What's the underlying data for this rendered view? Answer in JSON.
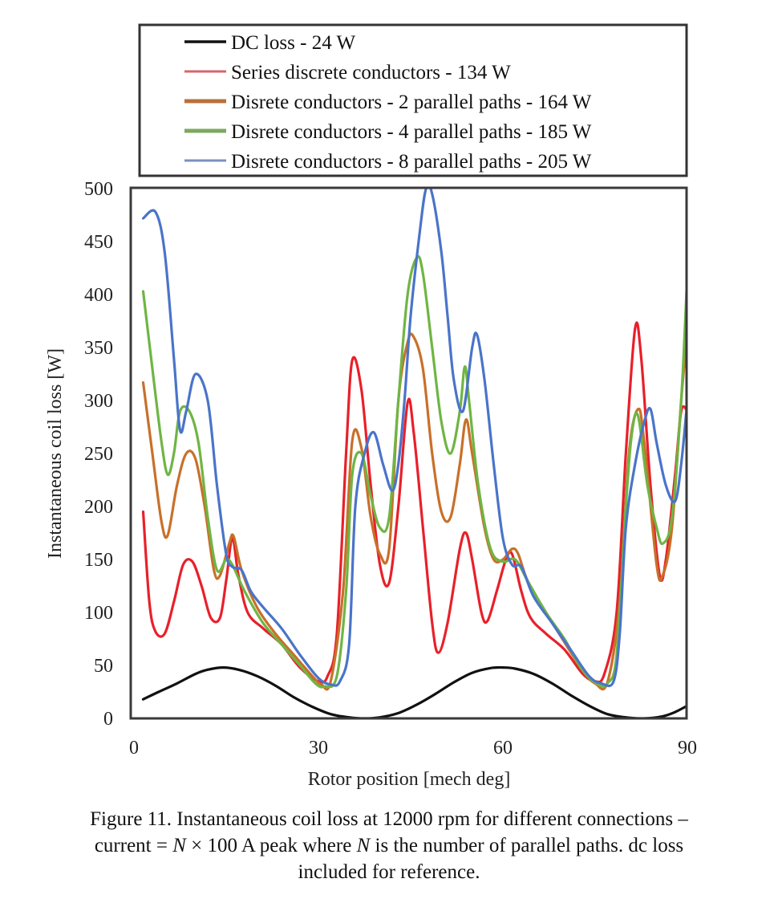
{
  "chart_data": {
    "type": "line",
    "title": "",
    "xlabel": "Rotor position [mech deg]",
    "ylabel": "Instantaneous coil loss [W]",
    "xlim": [
      0,
      90
    ],
    "ylim": [
      0,
      500
    ],
    "x_ticks": [
      0,
      30,
      60,
      90
    ],
    "y_ticks": [
      0,
      50,
      100,
      150,
      200,
      250,
      300,
      350,
      400,
      450,
      500
    ],
    "grid": false,
    "legend_position": "top (above plot)",
    "series": [
      {
        "name": "DC loss - 24 W",
        "color": "#111111",
        "points": [
          [
            1.5,
            18
          ],
          [
            4,
            25
          ],
          [
            7,
            33
          ],
          [
            10,
            42
          ],
          [
            12,
            46
          ],
          [
            14.5,
            48
          ],
          [
            17,
            46
          ],
          [
            20,
            40
          ],
          [
            23,
            31
          ],
          [
            26,
            20
          ],
          [
            29,
            11
          ],
          [
            32,
            4
          ],
          [
            35,
            1
          ],
          [
            37.5,
            0
          ],
          [
            40,
            1
          ],
          [
            43,
            5
          ],
          [
            46,
            13
          ],
          [
            49,
            23
          ],
          [
            52,
            34
          ],
          [
            55,
            43
          ],
          [
            58,
            47.5
          ],
          [
            60,
            48
          ],
          [
            62,
            47
          ],
          [
            65,
            42
          ],
          [
            68,
            33
          ],
          [
            71,
            22
          ],
          [
            74,
            12
          ],
          [
            77,
            4
          ],
          [
            80,
            1
          ],
          [
            83,
            0
          ],
          [
            86,
            2
          ],
          [
            88,
            6
          ],
          [
            90,
            12
          ]
        ]
      },
      {
        "name": "Series discrete conductors - 134 W",
        "color": "#e8202a",
        "points": [
          [
            1.5,
            195
          ],
          [
            2.5,
            110
          ],
          [
            3.5,
            82
          ],
          [
            5,
            80
          ],
          [
            6.5,
            110
          ],
          [
            8,
            145
          ],
          [
            9.5,
            148
          ],
          [
            11,
            125
          ],
          [
            12.5,
            95
          ],
          [
            14,
            95
          ],
          [
            15,
            130
          ],
          [
            16,
            170
          ],
          [
            17,
            135
          ],
          [
            18.5,
            100
          ],
          [
            21,
            85
          ],
          [
            24,
            70
          ],
          [
            27,
            48
          ],
          [
            30,
            35
          ],
          [
            31.5,
            40
          ],
          [
            33,
            80
          ],
          [
            34.5,
            250
          ],
          [
            35.5,
            338
          ],
          [
            37,
            310
          ],
          [
            38.5,
            220
          ],
          [
            40,
            145
          ],
          [
            41.5,
            128
          ],
          [
            43,
            200
          ],
          [
            44.5,
            298
          ],
          [
            45.5,
            270
          ],
          [
            47,
            180
          ],
          [
            48.5,
            90
          ],
          [
            49.5,
            62
          ],
          [
            51,
            90
          ],
          [
            53,
            160
          ],
          [
            54,
            175
          ],
          [
            55,
            150
          ],
          [
            56.5,
            100
          ],
          [
            57.5,
            92
          ],
          [
            59,
            120
          ],
          [
            60.5,
            150
          ],
          [
            61.5,
            155
          ],
          [
            63,
            120
          ],
          [
            64.5,
            95
          ],
          [
            67,
            80
          ],
          [
            70,
            65
          ],
          [
            73,
            42
          ],
          [
            75,
            35
          ],
          [
            76.5,
            42
          ],
          [
            78.5,
            100
          ],
          [
            80,
            250
          ],
          [
            81.5,
            368
          ],
          [
            82.5,
            340
          ],
          [
            84,
            220
          ],
          [
            85.5,
            135
          ],
          [
            86.5,
            150
          ],
          [
            88,
            230
          ],
          [
            89,
            290
          ],
          [
            90,
            290
          ]
        ]
      },
      {
        "name": "Disrete conductors - 2 parallel paths - 164 W",
        "color": "#c8702a",
        "points": [
          [
            1.5,
            317
          ],
          [
            3,
            250
          ],
          [
            4.5,
            185
          ],
          [
            5.5,
            173
          ],
          [
            7,
            220
          ],
          [
            8.5,
            250
          ],
          [
            10,
            245
          ],
          [
            11.5,
            200
          ],
          [
            13,
            140
          ],
          [
            14,
            135
          ],
          [
            15.5,
            165
          ],
          [
            16.2,
            172
          ],
          [
            17.5,
            140
          ],
          [
            20,
            105
          ],
          [
            23,
            80
          ],
          [
            26,
            60
          ],
          [
            29,
            40
          ],
          [
            30.5,
            32
          ],
          [
            32,
            35
          ],
          [
            34,
            120
          ],
          [
            35.5,
            262
          ],
          [
            37,
            255
          ],
          [
            38.5,
            190
          ],
          [
            40,
            155
          ],
          [
            41.5,
            160
          ],
          [
            43,
            300
          ],
          [
            44.5,
            355
          ],
          [
            45.5,
            360
          ],
          [
            47,
            330
          ],
          [
            48.5,
            250
          ],
          [
            50,
            195
          ],
          [
            51.5,
            190
          ],
          [
            53,
            240
          ],
          [
            54,
            282
          ],
          [
            55,
            250
          ],
          [
            57,
            180
          ],
          [
            58.5,
            150
          ],
          [
            60,
            150
          ],
          [
            61.5,
            160
          ],
          [
            62.5,
            155
          ],
          [
            64,
            130
          ],
          [
            67,
            100
          ],
          [
            70,
            72
          ],
          [
            73,
            45
          ],
          [
            75,
            33
          ],
          [
            77,
            34
          ],
          [
            79,
            110
          ],
          [
            80.5,
            250
          ],
          [
            82,
            292
          ],
          [
            83,
            260
          ],
          [
            85,
            145
          ],
          [
            86,
            135
          ],
          [
            87.5,
            180
          ],
          [
            89,
            300
          ],
          [
            90,
            365
          ]
        ]
      },
      {
        "name": "Disrete conductors - 4 parallel paths - 185 W",
        "color": "#6fb544",
        "points": [
          [
            1.5,
            403
          ],
          [
            3,
            330
          ],
          [
            4.5,
            260
          ],
          [
            5.5,
            230
          ],
          [
            6.5,
            250
          ],
          [
            7.5,
            290
          ],
          [
            9,
            290
          ],
          [
            10.5,
            260
          ],
          [
            12,
            190
          ],
          [
            13.5,
            140
          ],
          [
            15,
            150
          ],
          [
            16,
            145
          ],
          [
            18,
            120
          ],
          [
            21,
            90
          ],
          [
            24,
            70
          ],
          [
            27,
            50
          ],
          [
            29.5,
            33
          ],
          [
            31,
            30
          ],
          [
            33,
            40
          ],
          [
            34.5,
            120
          ],
          [
            35.5,
            230
          ],
          [
            37,
            250
          ],
          [
            38.5,
            210
          ],
          [
            40,
            180
          ],
          [
            41.5,
            190
          ],
          [
            43,
            300
          ],
          [
            44.5,
            400
          ],
          [
            46,
            435
          ],
          [
            47,
            420
          ],
          [
            48.5,
            350
          ],
          [
            50,
            280
          ],
          [
            51.5,
            250
          ],
          [
            53,
            290
          ],
          [
            53.8,
            332
          ],
          [
            54.5,
            300
          ],
          [
            56,
            220
          ],
          [
            58,
            160
          ],
          [
            60,
            148
          ],
          [
            62,
            150
          ],
          [
            64,
            130
          ],
          [
            67,
            100
          ],
          [
            70,
            75
          ],
          [
            73,
            45
          ],
          [
            75.5,
            32
          ],
          [
            77,
            33
          ],
          [
            78.5,
            60
          ],
          [
            80,
            200
          ],
          [
            81,
            270
          ],
          [
            82,
            285
          ],
          [
            83.5,
            220
          ],
          [
            85,
            180
          ],
          [
            86,
            165
          ],
          [
            87.5,
            190
          ],
          [
            89,
            300
          ],
          [
            90,
            420
          ]
        ]
      },
      {
        "name": "Disrete conductors - 8 parallel paths - 205 W",
        "color": "#4a74c9",
        "points": [
          [
            1.5,
            472
          ],
          [
            3.5,
            478
          ],
          [
            5,
            440
          ],
          [
            6.5,
            340
          ],
          [
            7.5,
            272
          ],
          [
            8.5,
            290
          ],
          [
            10,
            325
          ],
          [
            12,
            300
          ],
          [
            13.5,
            220
          ],
          [
            15,
            155
          ],
          [
            16,
            143
          ],
          [
            17.5,
            140
          ],
          [
            19,
            120
          ],
          [
            21,
            105
          ],
          [
            24,
            85
          ],
          [
            27,
            60
          ],
          [
            30,
            38
          ],
          [
            32,
            32
          ],
          [
            33.5,
            35
          ],
          [
            35,
            70
          ],
          [
            36,
            200
          ],
          [
            37.5,
            250
          ],
          [
            39,
            270
          ],
          [
            40.5,
            240
          ],
          [
            42,
            215
          ],
          [
            43,
            240
          ],
          [
            44,
            300
          ],
          [
            45,
            380
          ],
          [
            46.5,
            460
          ],
          [
            47.5,
            500
          ],
          [
            48.5,
            495
          ],
          [
            50,
            440
          ],
          [
            51,
            380
          ],
          [
            52,
            320
          ],
          [
            53.5,
            290
          ],
          [
            55,
            350
          ],
          [
            55.8,
            362
          ],
          [
            57,
            320
          ],
          [
            58.5,
            240
          ],
          [
            60,
            170
          ],
          [
            61.5,
            145
          ],
          [
            63,
            143
          ],
          [
            65,
            115
          ],
          [
            68,
            90
          ],
          [
            71,
            65
          ],
          [
            74,
            40
          ],
          [
            76,
            33
          ],
          [
            78,
            35
          ],
          [
            79,
            80
          ],
          [
            80,
            180
          ],
          [
            81.5,
            240
          ],
          [
            83,
            280
          ],
          [
            84,
            292
          ],
          [
            85,
            260
          ],
          [
            86.5,
            220
          ],
          [
            88,
            205
          ],
          [
            89,
            240
          ],
          [
            90,
            300
          ]
        ]
      }
    ]
  },
  "legend": {
    "items": [
      {
        "label": "DC loss - 24 W",
        "color": "#111111",
        "weight": 3.5
      },
      {
        "label": "Series discrete conductors - 134 W",
        "color": "#d9656b",
        "weight": 3
      },
      {
        "label": "Disrete conductors - 2 parallel paths - 164 W",
        "color": "#b8703a",
        "weight": 5
      },
      {
        "label": "Disrete conductors - 4 parallel paths - 185 W",
        "color": "#7da860",
        "weight": 5
      },
      {
        "label": "Disrete conductors - 8 parallel paths - 205 W",
        "color": "#7b8fc0",
        "weight": 3
      }
    ]
  },
  "caption": {
    "line1": "Figure 11.  Instantaneous coil loss at 12000 rpm for different connections –",
    "line2_a": "current = ",
    "line2_N1": "N",
    "line2_b": " × 100 A peak where ",
    "line2_N2": "N",
    "line2_c": " is the number of parallel paths. dc  loss",
    "line3": "included for reference."
  }
}
